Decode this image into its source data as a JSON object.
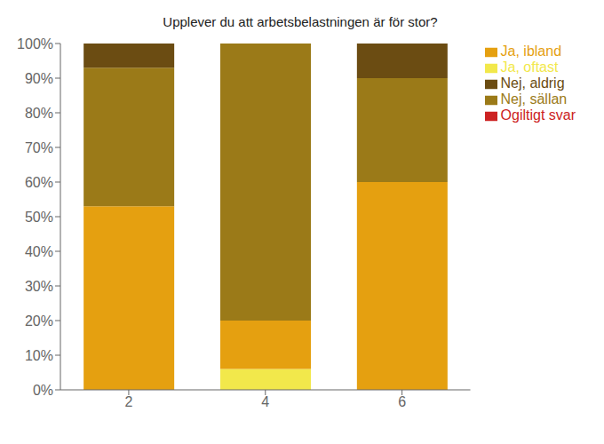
{
  "chart_data": {
    "type": "bar",
    "title": "Upplever du att arbetsbelastningen är för stor?",
    "categories": [
      "2",
      "4",
      "6"
    ],
    "series": [
      {
        "name": "Ja, oftast",
        "color": "#f2e84b",
        "values": [
          0,
          6,
          0
        ]
      },
      {
        "name": "Ja, ibland",
        "color": "#e5a010",
        "values": [
          53,
          14,
          60
        ]
      },
      {
        "name": "Nej, sällan",
        "color": "#9b7a18",
        "values": [
          40,
          80,
          30
        ]
      },
      {
        "name": "Nej, aldrig",
        "color": "#6b4c12",
        "values": [
          7,
          0,
          10
        ]
      },
      {
        "name": "Ogiltigt svar",
        "color": "#cc2222",
        "values": [
          0,
          0,
          0
        ]
      }
    ],
    "stacked": true,
    "ylim": [
      0,
      100
    ],
    "yticks": [
      {
        "value": 0,
        "label": "0%"
      },
      {
        "value": 10,
        "label": "10%"
      },
      {
        "value": 20,
        "label": "20%"
      },
      {
        "value": 30,
        "label": "30%"
      },
      {
        "value": 40,
        "label": "40%"
      },
      {
        "value": 50,
        "label": "50%"
      },
      {
        "value": 60,
        "label": "60%"
      },
      {
        "value": 70,
        "label": "70%"
      },
      {
        "value": 80,
        "label": "80%"
      },
      {
        "value": 90,
        "label": "90%"
      },
      {
        "value": 100,
        "label": "100%"
      }
    ],
    "grid": false,
    "legend": "upper right"
  }
}
